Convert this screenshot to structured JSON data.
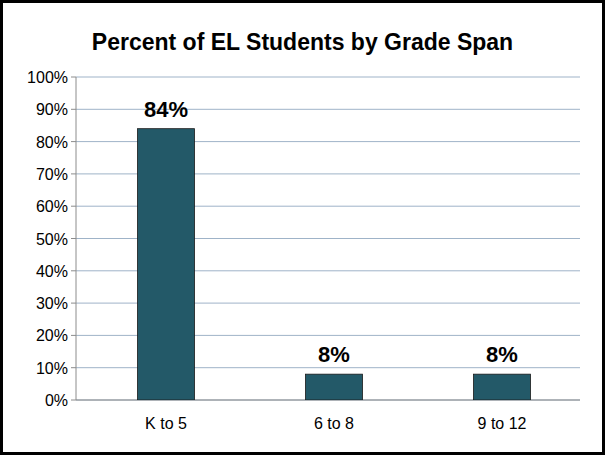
{
  "chart_data": {
    "type": "bar",
    "title": "Percent of EL Students by Grade Span",
    "categories": [
      "K to 5",
      "6 to 8",
      "9 to 12"
    ],
    "values": [
      84,
      8,
      8
    ],
    "value_labels": [
      "84%",
      "8%",
      "8%"
    ],
    "color": "#235968",
    "ylim": [
      0,
      100
    ],
    "yticks": [
      {
        "value": 0,
        "label": "0%"
      },
      {
        "value": 10,
        "label": "10%"
      },
      {
        "value": 20,
        "label": "20%"
      },
      {
        "value": 30,
        "label": "30%"
      },
      {
        "value": 40,
        "label": "40%"
      },
      {
        "value": 50,
        "label": "50%"
      },
      {
        "value": 60,
        "label": "60%"
      },
      {
        "value": 70,
        "label": "70%"
      },
      {
        "value": 80,
        "label": "80%"
      },
      {
        "value": 90,
        "label": "90%"
      },
      {
        "value": 100,
        "label": "100%"
      }
    ],
    "grid": true,
    "data_labels": true
  }
}
